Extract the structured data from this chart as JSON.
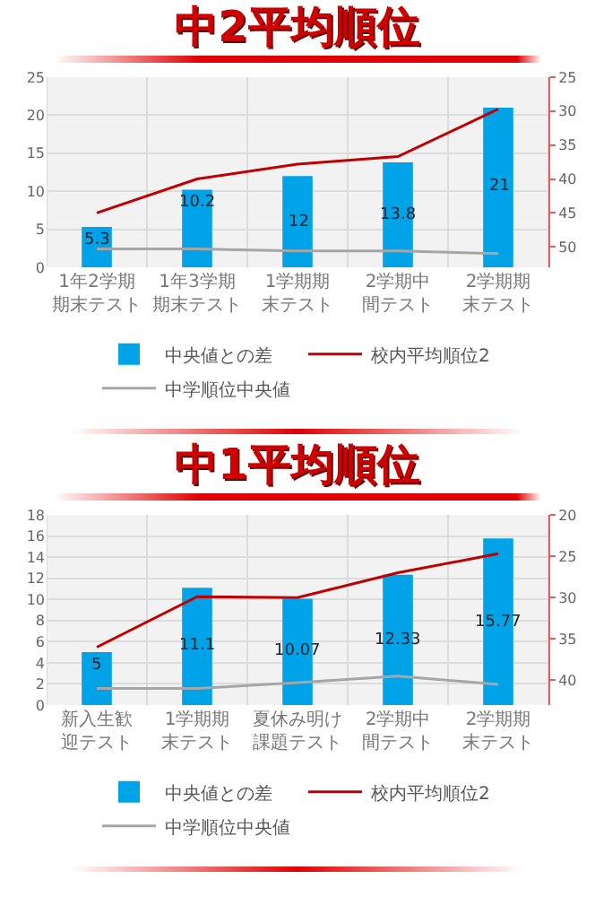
{
  "chart_data": [
    {
      "type": "bar",
      "title": "中2平均順位",
      "categories": [
        "1年2学期期末テスト",
        "1年3学期期末テスト",
        "1学期期末テスト",
        "2学期中間テスト",
        "2学期期末テスト"
      ],
      "ylim": [
        0,
        25
      ],
      "yticks": [
        0,
        5,
        10,
        15,
        20,
        25
      ],
      "y2lim": [
        53,
        25
      ],
      "y2ticks": [
        25,
        30,
        35,
        40,
        45,
        50
      ],
      "grid": true,
      "legend": "bottom",
      "series": [
        {
          "name": "中央値との差",
          "color": "#00a2e8",
          "values": [
            5.3,
            10.2,
            12,
            13.8,
            21
          ],
          "value_labels": [
            "5.3",
            "10.2",
            "12",
            "13.8",
            "21"
          ]
        },
        {
          "name": "校内平均順位2",
          "type": "line",
          "axis": "y2",
          "color": "#c00000",
          "values": [
            45,
            40,
            37.8,
            36.7,
            29.7
          ]
        },
        {
          "name": "中学順位中央値",
          "type": "line",
          "axis": "y2",
          "color": "#a6a6a6",
          "values": [
            50.3,
            50.3,
            50.6,
            50.6,
            51
          ]
        }
      ]
    },
    {
      "type": "bar",
      "title": "中1平均順位",
      "categories": [
        "新入生歓迎テスト",
        "1学期期末テスト",
        "夏休み明け課題テスト",
        "2学期中間テスト",
        "2学期期末テスト"
      ],
      "ylim": [
        0,
        18
      ],
      "yticks": [
        0,
        2,
        4,
        6,
        8,
        10,
        12,
        14,
        16,
        18
      ],
      "y2lim": [
        43,
        20
      ],
      "y2ticks": [
        20,
        25,
        30,
        35,
        40
      ],
      "grid": true,
      "legend": "bottom",
      "series": [
        {
          "name": "中央値との差",
          "color": "#00a2e8",
          "values": [
            5,
            11.1,
            10.07,
            12.33,
            15.77
          ],
          "value_labels": [
            "5",
            "11.1",
            "10.07",
            "12.33",
            "15.77"
          ]
        },
        {
          "name": "校内平均順位2",
          "type": "line",
          "axis": "y2",
          "color": "#c00000",
          "values": [
            36,
            29.9,
            30,
            27,
            24.7
          ]
        },
        {
          "name": "中学順位中央値",
          "type": "line",
          "axis": "y2",
          "color": "#a6a6a6",
          "values": [
            41,
            41,
            40.3,
            39.5,
            40.5
          ]
        }
      ]
    }
  ]
}
